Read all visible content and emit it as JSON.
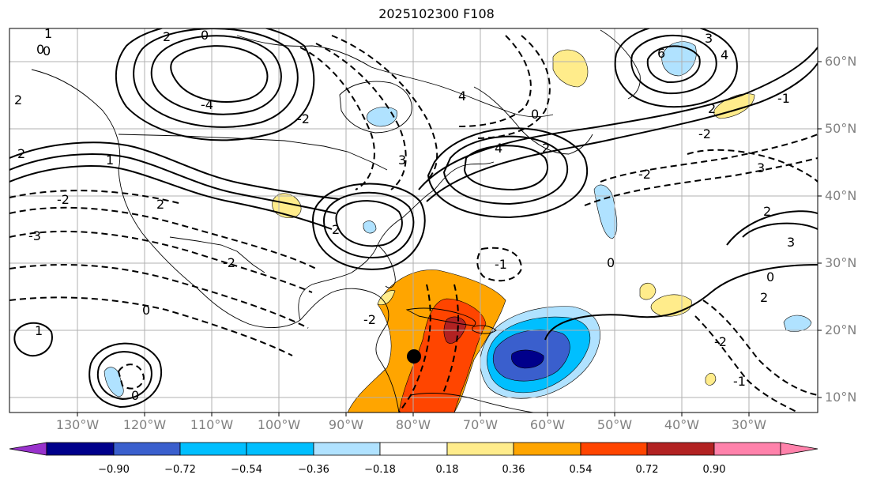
{
  "title": "2025102300 F108",
  "colorbar": {
    "colors": [
      "#9932cc",
      "#00008b",
      "#3a5fcd",
      "#00bfff",
      "#b0e2ff",
      "#ffffff",
      "#ffec8b",
      "#ffa500",
      "#ff4500",
      "#b22222",
      "#ff82ab"
    ],
    "ticks": [
      "−0.90",
      "−0.72",
      "−0.54",
      "−0.36",
      "−0.18",
      "0.18",
      "0.36",
      "0.54",
      "0.72",
      "0.90"
    ]
  },
  "lon_labels": [
    "130°W",
    "120°W",
    "110°W",
    "100°W",
    "90°W",
    "80°W",
    "70°W",
    "60°W",
    "50°W",
    "40°W",
    "30°W"
  ],
  "lat_labels": [
    "60°N",
    "50°N",
    "40°N",
    "30°N",
    "20°N",
    "10°N"
  ],
  "contour_labels": [
    "0",
    "2",
    "1",
    "0",
    "2",
    "6",
    "3",
    "4",
    "4",
    "2",
    "4",
    "0",
    "-2",
    "-4",
    "2",
    "-2",
    "3",
    "2",
    "-1",
    "-2",
    "2",
    "0",
    "1",
    "3",
    "0",
    "2",
    "-3",
    "-2",
    "0",
    "-2",
    "-1",
    "1",
    "0",
    "2",
    "-2",
    "-1",
    "-2",
    "0",
    "3",
    "2"
  ],
  "marker": {
    "name": "storm-center"
  }
}
